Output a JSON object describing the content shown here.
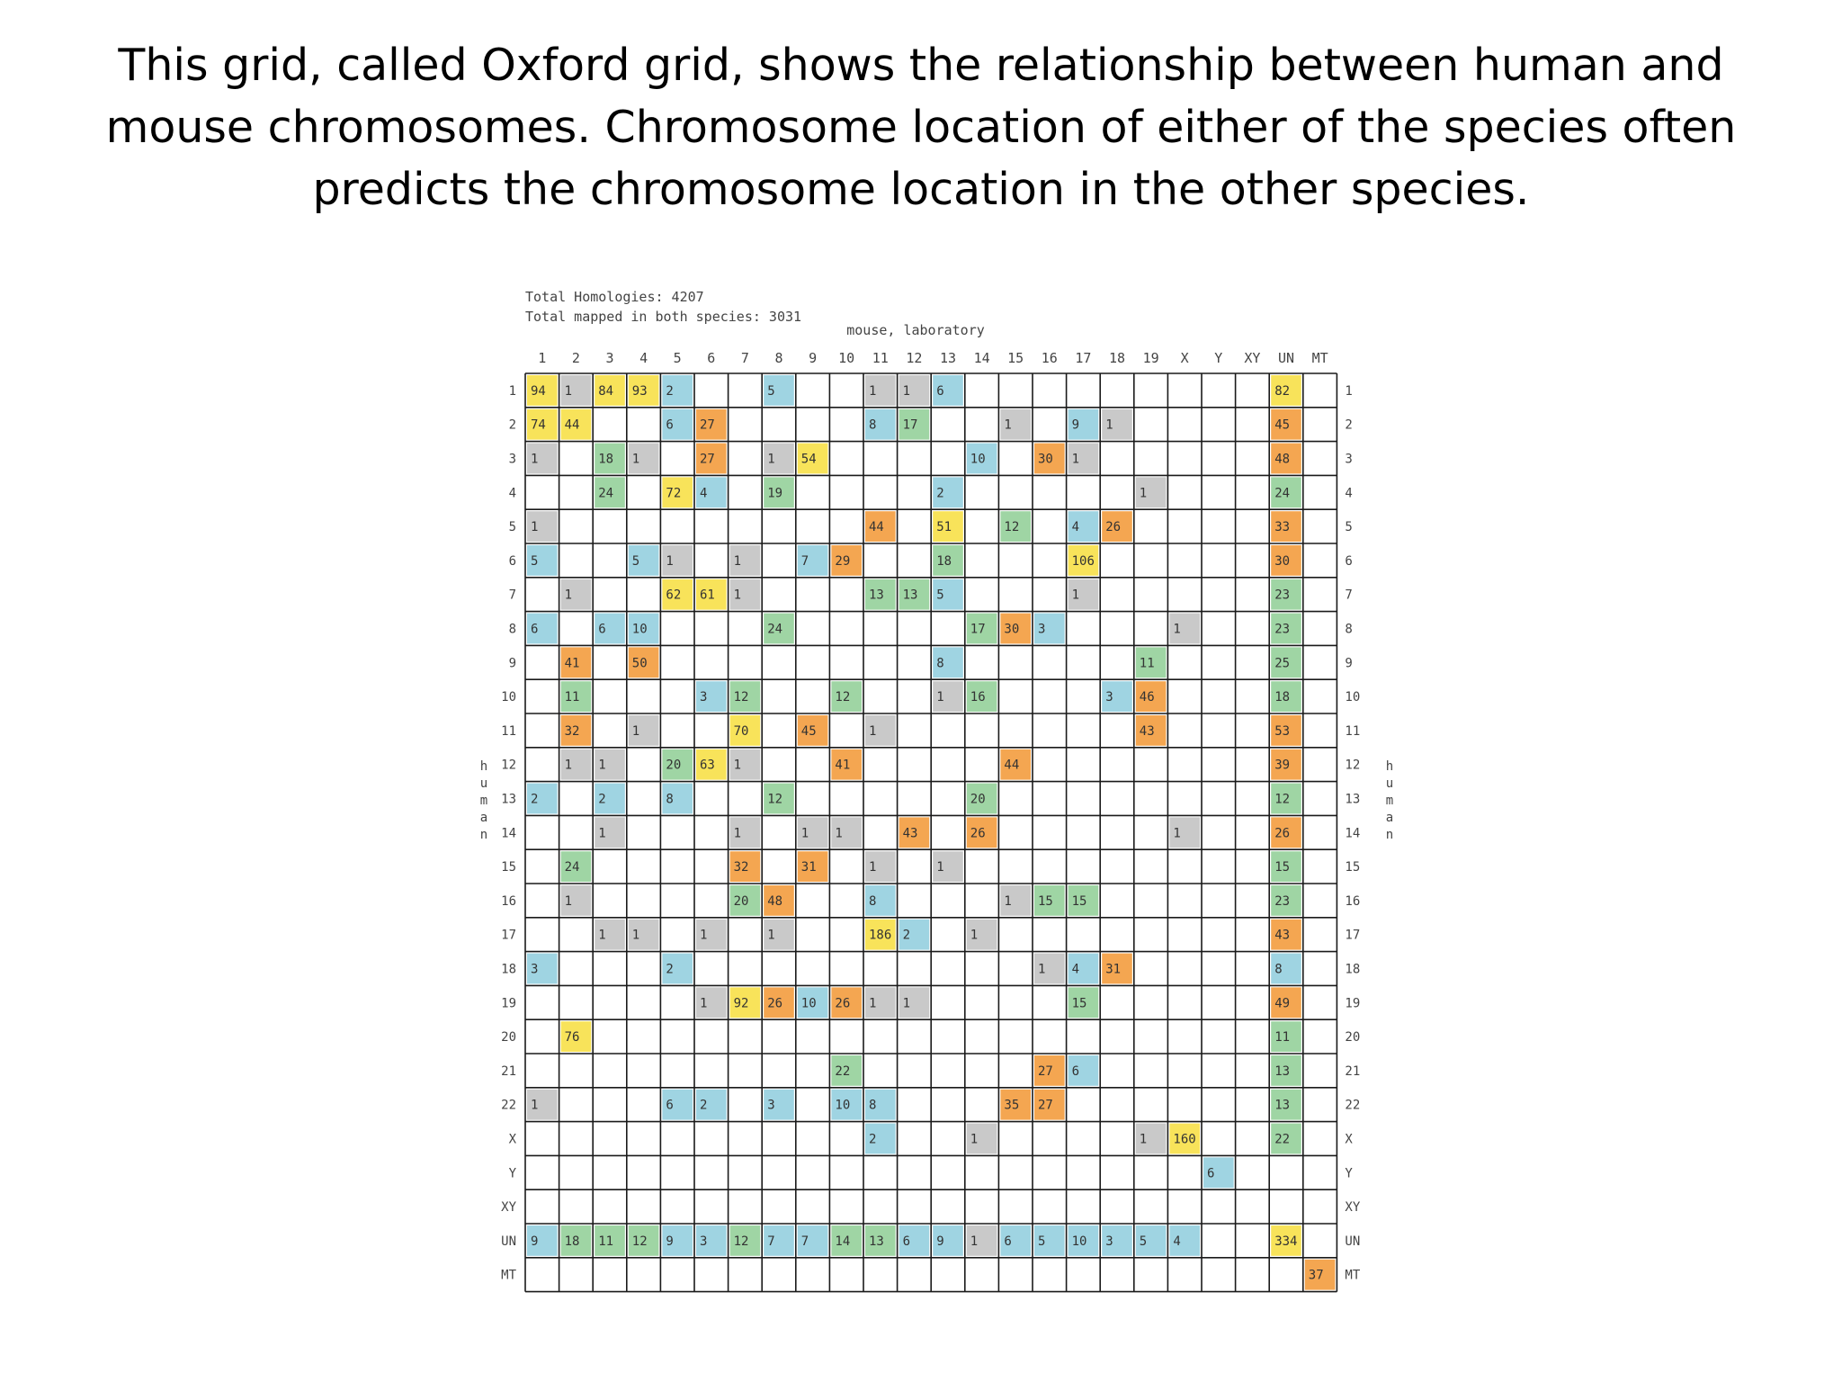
{
  "slide": {
    "title": "This grid, called Oxford grid, shows the relationship between human and mouse chromosomes. Chromosome location of either of the species often predicts the chromosome location in the other species."
  },
  "grid": {
    "summary_lines": [
      "Total Homologies:  4207",
      "Total mapped in both species: 3031"
    ],
    "x_axis_title": "mouse, laboratory",
    "y_axis_title": "human",
    "columns": [
      "1",
      "2",
      "3",
      "4",
      "5",
      "6",
      "7",
      "8",
      "9",
      "10",
      "11",
      "12",
      "13",
      "14",
      "15",
      "16",
      "17",
      "18",
      "19",
      "X",
      "Y",
      "XY",
      "UN",
      "MT"
    ],
    "rows": [
      "1",
      "2",
      "3",
      "4",
      "5",
      "6",
      "7",
      "8",
      "9",
      "10",
      "11",
      "12",
      "13",
      "14",
      "15",
      "16",
      "17",
      "18",
      "19",
      "20",
      "21",
      "22",
      "X",
      "Y",
      "XY",
      "UN",
      "MT"
    ],
    "colors": {
      "yellow": "#f8e35a",
      "orange": "#f4a651",
      "green": "#9fd5a4",
      "blue": "#9fd4e2",
      "gray": "#c9c9c9",
      "grid_line": "#1a1a1a",
      "label": "#444444"
    },
    "cells": [
      [
        0,
        0,
        "94",
        "yellow"
      ],
      [
        0,
        1,
        "1",
        "gray"
      ],
      [
        0,
        2,
        "84",
        "yellow"
      ],
      [
        0,
        3,
        "93",
        "yellow"
      ],
      [
        0,
        4,
        "2",
        "blue"
      ],
      [
        0,
        7,
        "5",
        "blue"
      ],
      [
        0,
        10,
        "1",
        "gray"
      ],
      [
        0,
        11,
        "1",
        "gray"
      ],
      [
        0,
        12,
        "6",
        "blue"
      ],
      [
        0,
        22,
        "82",
        "yellow"
      ],
      [
        1,
        0,
        "74",
        "yellow"
      ],
      [
        1,
        1,
        "44",
        "yellow"
      ],
      [
        1,
        4,
        "6",
        "blue"
      ],
      [
        1,
        5,
        "27",
        "orange"
      ],
      [
        1,
        10,
        "8",
        "blue"
      ],
      [
        1,
        11,
        "17",
        "green"
      ],
      [
        1,
        14,
        "1",
        "gray"
      ],
      [
        1,
        16,
        "9",
        "blue"
      ],
      [
        1,
        17,
        "1",
        "gray"
      ],
      [
        1,
        22,
        "45",
        "orange"
      ],
      [
        2,
        0,
        "1",
        "gray"
      ],
      [
        2,
        2,
        "18",
        "green"
      ],
      [
        2,
        3,
        "1",
        "gray"
      ],
      [
        2,
        5,
        "27",
        "orange"
      ],
      [
        2,
        7,
        "1",
        "gray"
      ],
      [
        2,
        8,
        "54",
        "yellow"
      ],
      [
        2,
        13,
        "10",
        "blue"
      ],
      [
        2,
        15,
        "30",
        "orange"
      ],
      [
        2,
        16,
        "1",
        "gray"
      ],
      [
        2,
        22,
        "48",
        "orange"
      ],
      [
        3,
        2,
        "24",
        "green"
      ],
      [
        3,
        4,
        "72",
        "yellow"
      ],
      [
        3,
        5,
        "4",
        "blue"
      ],
      [
        3,
        7,
        "19",
        "green"
      ],
      [
        3,
        12,
        "2",
        "blue"
      ],
      [
        3,
        18,
        "1",
        "gray"
      ],
      [
        3,
        22,
        "24",
        "green"
      ],
      [
        4,
        0,
        "1",
        "gray"
      ],
      [
        4,
        10,
        "44",
        "orange"
      ],
      [
        4,
        12,
        "51",
        "yellow"
      ],
      [
        4,
        14,
        "12",
        "green"
      ],
      [
        4,
        16,
        "4",
        "blue"
      ],
      [
        4,
        17,
        "26",
        "orange"
      ],
      [
        4,
        22,
        "33",
        "orange"
      ],
      [
        5,
        0,
        "5",
        "blue"
      ],
      [
        5,
        3,
        "5",
        "blue"
      ],
      [
        5,
        4,
        "1",
        "gray"
      ],
      [
        5,
        6,
        "1",
        "gray"
      ],
      [
        5,
        8,
        "7",
        "blue"
      ],
      [
        5,
        9,
        "29",
        "orange"
      ],
      [
        5,
        12,
        "18",
        "green"
      ],
      [
        5,
        16,
        "106",
        "yellow"
      ],
      [
        5,
        22,
        "30",
        "orange"
      ],
      [
        6,
        1,
        "1",
        "gray"
      ],
      [
        6,
        4,
        "62",
        "yellow"
      ],
      [
        6,
        5,
        "61",
        "yellow"
      ],
      [
        6,
        6,
        "1",
        "gray"
      ],
      [
        6,
        10,
        "13",
        "green"
      ],
      [
        6,
        11,
        "13",
        "green"
      ],
      [
        6,
        12,
        "5",
        "blue"
      ],
      [
        6,
        16,
        "1",
        "gray"
      ],
      [
        6,
        22,
        "23",
        "green"
      ],
      [
        7,
        0,
        "6",
        "blue"
      ],
      [
        7,
        2,
        "6",
        "blue"
      ],
      [
        7,
        3,
        "10",
        "blue"
      ],
      [
        7,
        7,
        "24",
        "green"
      ],
      [
        7,
        13,
        "17",
        "green"
      ],
      [
        7,
        14,
        "30",
        "orange"
      ],
      [
        7,
        15,
        "3",
        "blue"
      ],
      [
        7,
        19,
        "1",
        "gray"
      ],
      [
        7,
        22,
        "23",
        "green"
      ],
      [
        8,
        1,
        "41",
        "orange"
      ],
      [
        8,
        3,
        "50",
        "orange"
      ],
      [
        8,
        12,
        "8",
        "blue"
      ],
      [
        8,
        18,
        "11",
        "green"
      ],
      [
        8,
        22,
        "25",
        "green"
      ],
      [
        9,
        1,
        "11",
        "green"
      ],
      [
        9,
        5,
        "3",
        "blue"
      ],
      [
        9,
        6,
        "12",
        "green"
      ],
      [
        9,
        9,
        "12",
        "green"
      ],
      [
        9,
        12,
        "1",
        "gray"
      ],
      [
        9,
        13,
        "16",
        "green"
      ],
      [
        9,
        17,
        "3",
        "blue"
      ],
      [
        9,
        18,
        "46",
        "orange"
      ],
      [
        9,
        22,
        "18",
        "green"
      ],
      [
        10,
        1,
        "32",
        "orange"
      ],
      [
        10,
        3,
        "1",
        "gray"
      ],
      [
        10,
        6,
        "70",
        "yellow"
      ],
      [
        10,
        8,
        "45",
        "orange"
      ],
      [
        10,
        10,
        "1",
        "gray"
      ],
      [
        10,
        18,
        "43",
        "orange"
      ],
      [
        10,
        22,
        "53",
        "orange"
      ],
      [
        11,
        1,
        "1",
        "gray"
      ],
      [
        11,
        2,
        "1",
        "gray"
      ],
      [
        11,
        4,
        "20",
        "green"
      ],
      [
        11,
        5,
        "63",
        "yellow"
      ],
      [
        11,
        6,
        "1",
        "gray"
      ],
      [
        11,
        9,
        "41",
        "orange"
      ],
      [
        11,
        14,
        "44",
        "orange"
      ],
      [
        11,
        22,
        "39",
        "orange"
      ],
      [
        12,
        0,
        "2",
        "blue"
      ],
      [
        12,
        2,
        "2",
        "blue"
      ],
      [
        12,
        4,
        "8",
        "blue"
      ],
      [
        12,
        7,
        "12",
        "green"
      ],
      [
        12,
        13,
        "20",
        "green"
      ],
      [
        12,
        22,
        "12",
        "green"
      ],
      [
        13,
        2,
        "1",
        "gray"
      ],
      [
        13,
        6,
        "1",
        "gray"
      ],
      [
        13,
        8,
        "1",
        "gray"
      ],
      [
        13,
        9,
        "1",
        "gray"
      ],
      [
        13,
        11,
        "43",
        "orange"
      ],
      [
        13,
        13,
        "26",
        "orange"
      ],
      [
        13,
        19,
        "1",
        "gray"
      ],
      [
        13,
        22,
        "26",
        "orange"
      ],
      [
        14,
        1,
        "24",
        "green"
      ],
      [
        14,
        6,
        "32",
        "orange"
      ],
      [
        14,
        8,
        "31",
        "orange"
      ],
      [
        14,
        10,
        "1",
        "gray"
      ],
      [
        14,
        12,
        "1",
        "gray"
      ],
      [
        14,
        22,
        "15",
        "green"
      ],
      [
        15,
        1,
        "1",
        "gray"
      ],
      [
        15,
        6,
        "20",
        "green"
      ],
      [
        15,
        7,
        "48",
        "orange"
      ],
      [
        15,
        10,
        "8",
        "blue"
      ],
      [
        15,
        14,
        "1",
        "gray"
      ],
      [
        15,
        15,
        "15",
        "green"
      ],
      [
        15,
        16,
        "15",
        "green"
      ],
      [
        15,
        22,
        "23",
        "green"
      ],
      [
        16,
        2,
        "1",
        "gray"
      ],
      [
        16,
        3,
        "1",
        "gray"
      ],
      [
        16,
        5,
        "1",
        "gray"
      ],
      [
        16,
        7,
        "1",
        "gray"
      ],
      [
        16,
        10,
        "186",
        "yellow"
      ],
      [
        16,
        11,
        "2",
        "blue"
      ],
      [
        16,
        13,
        "1",
        "gray"
      ],
      [
        16,
        22,
        "43",
        "orange"
      ],
      [
        17,
        0,
        "3",
        "blue"
      ],
      [
        17,
        4,
        "2",
        "blue"
      ],
      [
        17,
        15,
        "1",
        "gray"
      ],
      [
        17,
        16,
        "4",
        "blue"
      ],
      [
        17,
        17,
        "31",
        "orange"
      ],
      [
        17,
        22,
        "8",
        "blue"
      ],
      [
        18,
        5,
        "1",
        "gray"
      ],
      [
        18,
        6,
        "92",
        "yellow"
      ],
      [
        18,
        7,
        "26",
        "orange"
      ],
      [
        18,
        8,
        "10",
        "blue"
      ],
      [
        18,
        9,
        "26",
        "orange"
      ],
      [
        18,
        10,
        "1",
        "gray"
      ],
      [
        18,
        11,
        "1",
        "gray"
      ],
      [
        18,
        16,
        "15",
        "green"
      ],
      [
        18,
        22,
        "49",
        "orange"
      ],
      [
        19,
        1,
        "76",
        "yellow"
      ],
      [
        19,
        22,
        "11",
        "green"
      ],
      [
        20,
        9,
        "22",
        "green"
      ],
      [
        20,
        15,
        "27",
        "orange"
      ],
      [
        20,
        16,
        "6",
        "blue"
      ],
      [
        20,
        22,
        "13",
        "green"
      ],
      [
        21,
        0,
        "1",
        "gray"
      ],
      [
        21,
        4,
        "6",
        "blue"
      ],
      [
        21,
        5,
        "2",
        "blue"
      ],
      [
        21,
        7,
        "3",
        "blue"
      ],
      [
        21,
        9,
        "10",
        "blue"
      ],
      [
        21,
        10,
        "8",
        "blue"
      ],
      [
        21,
        14,
        "35",
        "orange"
      ],
      [
        21,
        15,
        "27",
        "orange"
      ],
      [
        21,
        22,
        "13",
        "green"
      ],
      [
        22,
        10,
        "2",
        "blue"
      ],
      [
        22,
        13,
        "1",
        "gray"
      ],
      [
        22,
        18,
        "1",
        "gray"
      ],
      [
        22,
        19,
        "160",
        "yellow"
      ],
      [
        22,
        22,
        "22",
        "green"
      ],
      [
        23,
        20,
        "6",
        "blue"
      ],
      [
        25,
        0,
        "9",
        "blue"
      ],
      [
        25,
        1,
        "18",
        "green"
      ],
      [
        25,
        2,
        "11",
        "green"
      ],
      [
        25,
        3,
        "12",
        "green"
      ],
      [
        25,
        4,
        "9",
        "blue"
      ],
      [
        25,
        5,
        "3",
        "blue"
      ],
      [
        25,
        6,
        "12",
        "green"
      ],
      [
        25,
        7,
        "7",
        "blue"
      ],
      [
        25,
        8,
        "7",
        "blue"
      ],
      [
        25,
        9,
        "14",
        "green"
      ],
      [
        25,
        10,
        "13",
        "green"
      ],
      [
        25,
        11,
        "6",
        "blue"
      ],
      [
        25,
        12,
        "9",
        "blue"
      ],
      [
        25,
        13,
        "1",
        "gray"
      ],
      [
        25,
        14,
        "6",
        "blue"
      ],
      [
        25,
        15,
        "5",
        "blue"
      ],
      [
        25,
        16,
        "10",
        "blue"
      ],
      [
        25,
        17,
        "3",
        "blue"
      ],
      [
        25,
        18,
        "5",
        "blue"
      ],
      [
        25,
        19,
        "4",
        "blue"
      ],
      [
        25,
        22,
        "334",
        "yellow"
      ],
      [
        26,
        23,
        "37",
        "orange"
      ]
    ]
  }
}
